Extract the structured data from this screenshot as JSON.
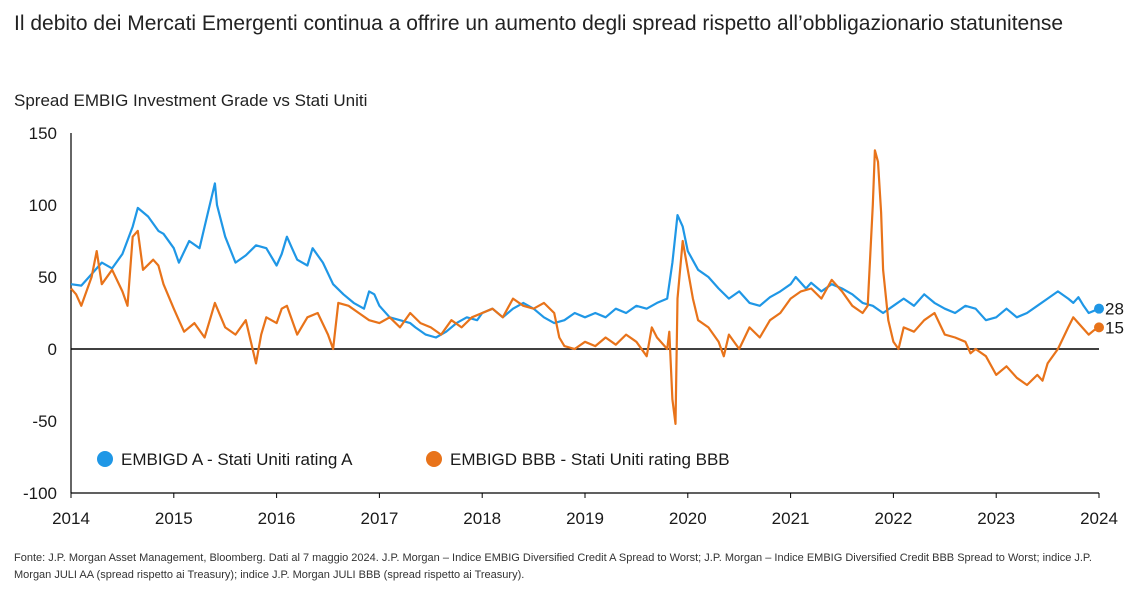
{
  "title": "Il debito dei Mercati Emergenti continua a offrire un aumento degli spread rispetto all’obbligazionario statunitense",
  "subtitle": "Spread EMBIG Investment Grade vs Stati Uniti",
  "footnote": "Fonte: J.P. Morgan Asset Management, Bloomberg. Dati al 7 maggio 2024. J.P. Morgan – Indice EMBIG Diversified Credit A Spread to Worst; J.P. Morgan – Indice EMBIG Diversified Credit BBB Spread to Worst; indice J.P. Morgan JULI AA (spread rispetto ai Treasury); indice J.P. Morgan JULI BBB (spread rispetto ai Treasury).",
  "colors": {
    "series_a": "#1f97e6",
    "series_bbb": "#e8731a",
    "axis": "#000000"
  },
  "chart_data": {
    "type": "line",
    "x_ticks": [
      "2014",
      "2015",
      "2016",
      "2017",
      "2018",
      "2019",
      "2020",
      "2021",
      "2022",
      "2023",
      "2024"
    ],
    "y_ticks": [
      "150",
      "100",
      "50",
      "0",
      "-50",
      "-100"
    ],
    "ylim": [
      -100,
      150
    ],
    "xlim": [
      2014.0,
      2024.0
    ],
    "legend_position": "bottom-left",
    "series": [
      {
        "name": "EMBIGD A - Stati Uniti rating A",
        "color": "#1f97e6",
        "end_value": "28",
        "points": [
          [
            2014.0,
            45
          ],
          [
            2014.1,
            44
          ],
          [
            2014.2,
            52
          ],
          [
            2014.3,
            60
          ],
          [
            2014.4,
            56
          ],
          [
            2014.5,
            66
          ],
          [
            2014.6,
            85
          ],
          [
            2014.65,
            98
          ],
          [
            2014.75,
            92
          ],
          [
            2014.85,
            82
          ],
          [
            2014.9,
            80
          ],
          [
            2015.0,
            70
          ],
          [
            2015.05,
            60
          ],
          [
            2015.15,
            75
          ],
          [
            2015.25,
            70
          ],
          [
            2015.3,
            85
          ],
          [
            2015.4,
            115
          ],
          [
            2015.42,
            100
          ],
          [
            2015.5,
            78
          ],
          [
            2015.6,
            60
          ],
          [
            2015.7,
            65
          ],
          [
            2015.8,
            72
          ],
          [
            2015.9,
            70
          ],
          [
            2016.0,
            58
          ],
          [
            2016.05,
            66
          ],
          [
            2016.1,
            78
          ],
          [
            2016.15,
            70
          ],
          [
            2016.2,
            62
          ],
          [
            2016.3,
            58
          ],
          [
            2016.35,
            70
          ],
          [
            2016.45,
            60
          ],
          [
            2016.55,
            45
          ],
          [
            2016.65,
            38
          ],
          [
            2016.75,
            32
          ],
          [
            2016.85,
            28
          ],
          [
            2016.9,
            40
          ],
          [
            2016.95,
            38
          ],
          [
            2017.0,
            30
          ],
          [
            2017.1,
            22
          ],
          [
            2017.2,
            20
          ],
          [
            2017.3,
            18
          ],
          [
            2017.35,
            15
          ],
          [
            2017.45,
            10
          ],
          [
            2017.55,
            8
          ],
          [
            2017.65,
            12
          ],
          [
            2017.75,
            18
          ],
          [
            2017.85,
            22
          ],
          [
            2017.95,
            20
          ],
          [
            2018.0,
            25
          ],
          [
            2018.1,
            28
          ],
          [
            2018.2,
            22
          ],
          [
            2018.3,
            28
          ],
          [
            2018.4,
            32
          ],
          [
            2018.5,
            28
          ],
          [
            2018.6,
            22
          ],
          [
            2018.7,
            18
          ],
          [
            2018.8,
            20
          ],
          [
            2018.9,
            25
          ],
          [
            2019.0,
            22
          ],
          [
            2019.1,
            25
          ],
          [
            2019.2,
            22
          ],
          [
            2019.3,
            28
          ],
          [
            2019.4,
            25
          ],
          [
            2019.5,
            30
          ],
          [
            2019.6,
            28
          ],
          [
            2019.7,
            32
          ],
          [
            2019.8,
            35
          ],
          [
            2019.85,
            60
          ],
          [
            2019.9,
            93
          ],
          [
            2019.95,
            85
          ],
          [
            2020.0,
            68
          ],
          [
            2020.1,
            55
          ],
          [
            2020.2,
            50
          ],
          [
            2020.3,
            42
          ],
          [
            2020.4,
            35
          ],
          [
            2020.5,
            40
          ],
          [
            2020.6,
            32
          ],
          [
            2020.7,
            30
          ],
          [
            2020.8,
            36
          ],
          [
            2020.9,
            40
          ],
          [
            2021.0,
            45
          ],
          [
            2021.05,
            50
          ],
          [
            2021.15,
            42
          ],
          [
            2021.2,
            46
          ],
          [
            2021.3,
            40
          ],
          [
            2021.4,
            45
          ],
          [
            2021.5,
            42
          ],
          [
            2021.6,
            38
          ],
          [
            2021.7,
            32
          ],
          [
            2021.8,
            30
          ],
          [
            2021.9,
            25
          ],
          [
            2022.0,
            30
          ],
          [
            2022.1,
            35
          ],
          [
            2022.2,
            30
          ],
          [
            2022.3,
            38
          ],
          [
            2022.4,
            32
          ],
          [
            2022.5,
            28
          ],
          [
            2022.6,
            25
          ],
          [
            2022.7,
            30
          ],
          [
            2022.8,
            28
          ],
          [
            2022.9,
            20
          ],
          [
            2023.0,
            22
          ],
          [
            2023.1,
            28
          ],
          [
            2023.2,
            22
          ],
          [
            2023.3,
            25
          ],
          [
            2023.4,
            30
          ],
          [
            2023.5,
            35
          ],
          [
            2023.6,
            40
          ],
          [
            2023.7,
            35
          ],
          [
            2023.75,
            32
          ],
          [
            2023.8,
            36
          ],
          [
            2023.85,
            30
          ],
          [
            2023.9,
            25
          ],
          [
            2024.0,
            28
          ]
        ]
      },
      {
        "name": "EMBIGD BBB - Stati Uniti rating BBB",
        "color": "#e8731a",
        "end_value": "15",
        "points": [
          [
            2014.0,
            42
          ],
          [
            2014.05,
            38
          ],
          [
            2014.1,
            30
          ],
          [
            2014.2,
            50
          ],
          [
            2014.25,
            68
          ],
          [
            2014.3,
            45
          ],
          [
            2014.4,
            55
          ],
          [
            2014.5,
            40
          ],
          [
            2014.55,
            30
          ],
          [
            2014.6,
            78
          ],
          [
            2014.65,
            82
          ],
          [
            2014.7,
            55
          ],
          [
            2014.8,
            62
          ],
          [
            2014.85,
            58
          ],
          [
            2014.9,
            45
          ],
          [
            2015.0,
            28
          ],
          [
            2015.05,
            20
          ],
          [
            2015.1,
            12
          ],
          [
            2015.2,
            18
          ],
          [
            2015.3,
            8
          ],
          [
            2015.35,
            20
          ],
          [
            2015.4,
            32
          ],
          [
            2015.5,
            15
          ],
          [
            2015.6,
            10
          ],
          [
            2015.7,
            20
          ],
          [
            2015.75,
            5
          ],
          [
            2015.8,
            -10
          ],
          [
            2015.85,
            10
          ],
          [
            2015.9,
            22
          ],
          [
            2016.0,
            18
          ],
          [
            2016.05,
            28
          ],
          [
            2016.1,
            30
          ],
          [
            2016.2,
            10
          ],
          [
            2016.3,
            22
          ],
          [
            2016.4,
            25
          ],
          [
            2016.5,
            10
          ],
          [
            2016.55,
            0
          ],
          [
            2016.6,
            32
          ],
          [
            2016.7,
            30
          ],
          [
            2016.8,
            25
          ],
          [
            2016.9,
            20
          ],
          [
            2017.0,
            18
          ],
          [
            2017.1,
            22
          ],
          [
            2017.2,
            15
          ],
          [
            2017.3,
            25
          ],
          [
            2017.4,
            18
          ],
          [
            2017.5,
            15
          ],
          [
            2017.6,
            10
          ],
          [
            2017.7,
            20
          ],
          [
            2017.8,
            15
          ],
          [
            2017.9,
            22
          ],
          [
            2018.0,
            25
          ],
          [
            2018.1,
            28
          ],
          [
            2018.2,
            22
          ],
          [
            2018.3,
            35
          ],
          [
            2018.4,
            30
          ],
          [
            2018.5,
            28
          ],
          [
            2018.6,
            32
          ],
          [
            2018.7,
            25
          ],
          [
            2018.75,
            8
          ],
          [
            2018.8,
            2
          ],
          [
            2018.9,
            0
          ],
          [
            2019.0,
            5
          ],
          [
            2019.1,
            2
          ],
          [
            2019.2,
            8
          ],
          [
            2019.3,
            3
          ],
          [
            2019.4,
            10
          ],
          [
            2019.5,
            5
          ],
          [
            2019.6,
            -5
          ],
          [
            2019.65,
            15
          ],
          [
            2019.7,
            8
          ],
          [
            2019.8,
            0
          ],
          [
            2019.82,
            12
          ],
          [
            2019.85,
            -35
          ],
          [
            2019.88,
            -52
          ],
          [
            2019.9,
            35
          ],
          [
            2019.95,
            75
          ],
          [
            2020.0,
            55
          ],
          [
            2020.05,
            35
          ],
          [
            2020.1,
            20
          ],
          [
            2020.2,
            15
          ],
          [
            2020.3,
            5
          ],
          [
            2020.35,
            -5
          ],
          [
            2020.4,
            10
          ],
          [
            2020.5,
            0
          ],
          [
            2020.6,
            15
          ],
          [
            2020.7,
            8
          ],
          [
            2020.8,
            20
          ],
          [
            2020.9,
            25
          ],
          [
            2021.0,
            35
          ],
          [
            2021.1,
            40
          ],
          [
            2021.2,
            42
          ],
          [
            2021.3,
            35
          ],
          [
            2021.4,
            48
          ],
          [
            2021.5,
            40
          ],
          [
            2021.6,
            30
          ],
          [
            2021.7,
            25
          ],
          [
            2021.75,
            30
          ],
          [
            2021.8,
            100
          ],
          [
            2021.82,
            138
          ],
          [
            2021.85,
            130
          ],
          [
            2021.88,
            95
          ],
          [
            2021.9,
            55
          ],
          [
            2021.95,
            20
          ],
          [
            2022.0,
            5
          ],
          [
            2022.05,
            0
          ],
          [
            2022.1,
            15
          ],
          [
            2022.2,
            12
          ],
          [
            2022.3,
            20
          ],
          [
            2022.4,
            25
          ],
          [
            2022.5,
            10
          ],
          [
            2022.6,
            8
          ],
          [
            2022.7,
            5
          ],
          [
            2022.75,
            -3
          ],
          [
            2022.8,
            0
          ],
          [
            2022.9,
            -5
          ],
          [
            2023.0,
            -18
          ],
          [
            2023.1,
            -12
          ],
          [
            2023.2,
            -20
          ],
          [
            2023.3,
            -25
          ],
          [
            2023.4,
            -18
          ],
          [
            2023.45,
            -22
          ],
          [
            2023.5,
            -10
          ],
          [
            2023.6,
            0
          ],
          [
            2023.7,
            15
          ],
          [
            2023.75,
            22
          ],
          [
            2023.8,
            18
          ],
          [
            2023.9,
            10
          ],
          [
            2023.95,
            13
          ],
          [
            2024.0,
            15
          ]
        ]
      }
    ]
  }
}
